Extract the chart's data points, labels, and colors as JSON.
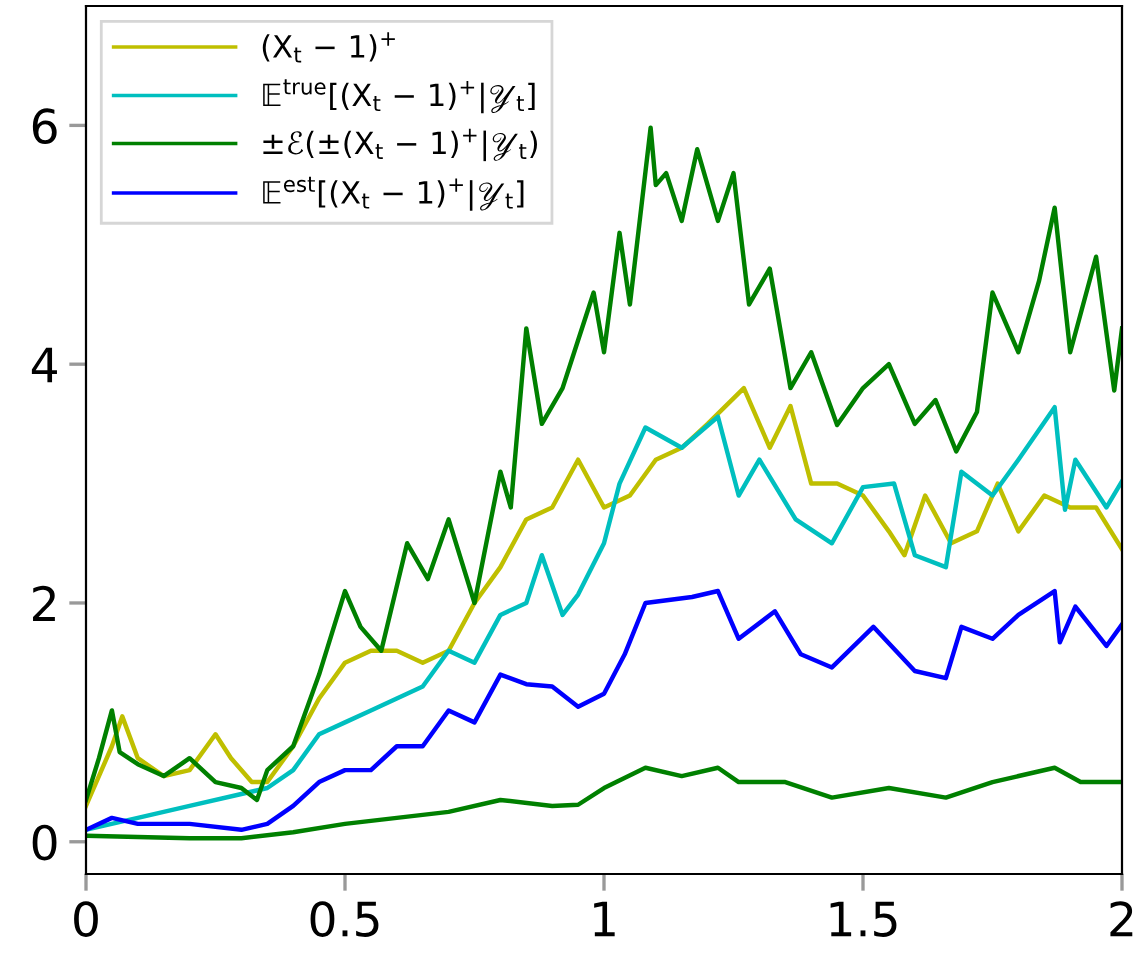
{
  "chart_data": {
    "type": "line",
    "xlim": [
      0,
      2
    ],
    "ylim": [
      -0.27,
      7
    ],
    "xticks": [
      0,
      0.5,
      1,
      1.5,
      2
    ],
    "yticks": [
      0,
      2,
      4,
      6
    ],
    "grid": false,
    "legend": "top left",
    "marker": "none",
    "line_style": "solid",
    "series": [
      {
        "name": "(X$_{t}$ − 1)$^{+}$",
        "color": "#bfbf00",
        "x": [
          0,
          0.05,
          0.07,
          0.1,
          0.15,
          0.2,
          0.25,
          0.28,
          0.32,
          0.35,
          0.4,
          0.45,
          0.5,
          0.55,
          0.6,
          0.65,
          0.7,
          0.75,
          0.8,
          0.85,
          0.9,
          0.95,
          1.0,
          1.05,
          1.1,
          1.15,
          1.2,
          1.27,
          1.32,
          1.36,
          1.4,
          1.45,
          1.5,
          1.55,
          1.58,
          1.62,
          1.67,
          1.72,
          1.76,
          1.8,
          1.85,
          1.9,
          1.95,
          2.0
        ],
        "values": [
          0.3,
          0.8,
          1.05,
          0.7,
          0.55,
          0.6,
          0.9,
          0.7,
          0.5,
          0.5,
          0.8,
          1.2,
          1.5,
          1.6,
          1.6,
          1.5,
          1.6,
          2.0,
          2.3,
          2.7,
          2.8,
          3.2,
          2.8,
          2.9,
          3.2,
          3.3,
          3.5,
          3.8,
          3.3,
          3.65,
          3.0,
          3.0,
          2.9,
          2.6,
          2.4,
          2.9,
          2.5,
          2.6,
          3.0,
          2.6,
          2.9,
          2.8,
          2.8,
          2.45
        ]
      },
      {
        "name": "𝔼$^{true}$[(X$_{t}$ − 1)$^{+}$|𝒴$_{t}$]",
        "color": "#00bfbf",
        "x": [
          0,
          0.1,
          0.2,
          0.3,
          0.35,
          0.4,
          0.45,
          0.5,
          0.55,
          0.6,
          0.65,
          0.7,
          0.75,
          0.8,
          0.85,
          0.88,
          0.92,
          0.95,
          1.0,
          1.03,
          1.08,
          1.15,
          1.22,
          1.26,
          1.3,
          1.37,
          1.44,
          1.5,
          1.56,
          1.6,
          1.66,
          1.69,
          1.75,
          1.8,
          1.87,
          1.89,
          1.91,
          1.97,
          2.0
        ],
        "values": [
          0.1,
          0.2,
          0.3,
          0.4,
          0.45,
          0.6,
          0.9,
          1.0,
          1.1,
          1.2,
          1.3,
          1.6,
          1.5,
          1.9,
          2.0,
          2.4,
          1.9,
          2.07,
          2.5,
          3.0,
          3.47,
          3.3,
          3.56,
          2.9,
          3.2,
          2.7,
          2.5,
          2.97,
          3.0,
          2.4,
          2.3,
          3.1,
          2.9,
          3.2,
          3.64,
          2.78,
          3.2,
          2.8,
          3.02
        ]
      },
      {
        "name": "±ℰ(±(X$_{t}$ − 1)$^{+}$|𝒴$_{t}$)",
        "color": "#008000",
        "x": [
          0,
          0.025,
          0.05,
          0.065,
          0.1,
          0.15,
          0.2,
          0.25,
          0.3,
          0.33,
          0.35,
          0.4,
          0.45,
          0.5,
          0.53,
          0.57,
          0.62,
          0.66,
          0.7,
          0.75,
          0.8,
          0.82,
          0.85,
          0.88,
          0.92,
          0.95,
          0.98,
          1.0,
          1.03,
          1.05,
          1.09,
          1.1,
          1.12,
          1.15,
          1.18,
          1.22,
          1.25,
          1.28,
          1.32,
          1.36,
          1.4,
          1.45,
          1.5,
          1.55,
          1.6,
          1.64,
          1.68,
          1.72,
          1.75,
          1.8,
          1.84,
          1.87,
          1.9,
          1.95,
          1.985,
          2.0
        ],
        "values": [
          0.35,
          0.7,
          1.1,
          0.75,
          0.65,
          0.55,
          0.7,
          0.5,
          0.45,
          0.35,
          0.6,
          0.8,
          1.4,
          2.1,
          1.8,
          1.6,
          2.5,
          2.2,
          2.7,
          2.0,
          3.1,
          2.8,
          4.3,
          3.5,
          3.8,
          4.2,
          4.6,
          4.1,
          5.1,
          4.5,
          5.98,
          5.5,
          5.6,
          5.2,
          5.8,
          5.2,
          5.6,
          4.5,
          4.8,
          3.8,
          4.1,
          3.49,
          3.8,
          4.0,
          3.5,
          3.7,
          3.27,
          3.6,
          4.6,
          4.1,
          4.7,
          5.31,
          4.1,
          4.9,
          3.78,
          4.3
        ]
      },
      {
        "color": "#008000",
        "x": [
          0,
          0.1,
          0.2,
          0.3,
          0.4,
          0.5,
          0.6,
          0.7,
          0.8,
          0.9,
          0.95,
          1.0,
          1.08,
          1.15,
          1.22,
          1.26,
          1.35,
          1.44,
          1.55,
          1.66,
          1.75,
          1.87,
          1.92,
          2.0
        ],
        "values": [
          0.05,
          0.04,
          0.03,
          0.03,
          0.08,
          0.15,
          0.2,
          0.25,
          0.35,
          0.3,
          0.31,
          0.45,
          0.62,
          0.55,
          0.62,
          0.5,
          0.5,
          0.37,
          0.45,
          0.37,
          0.5,
          0.62,
          0.5,
          0.5
        ]
      },
      {
        "name": "𝔼$^{est}$[(X$_{t}$ − 1)$^{+}$|𝒴$_{t}$]",
        "color": "#0000ff",
        "x": [
          0,
          0.05,
          0.1,
          0.2,
          0.3,
          0.35,
          0.4,
          0.45,
          0.5,
          0.55,
          0.6,
          0.65,
          0.7,
          0.75,
          0.8,
          0.85,
          0.9,
          0.95,
          1.0,
          1.04,
          1.08,
          1.17,
          1.22,
          1.26,
          1.33,
          1.38,
          1.44,
          1.52,
          1.6,
          1.66,
          1.69,
          1.75,
          1.8,
          1.87,
          1.88,
          1.91,
          1.97,
          2.0
        ],
        "values": [
          0.1,
          0.2,
          0.15,
          0.15,
          0.1,
          0.15,
          0.3,
          0.5,
          0.6,
          0.6,
          0.8,
          0.8,
          1.1,
          1.0,
          1.4,
          1.32,
          1.3,
          1.13,
          1.24,
          1.57,
          2.0,
          2.05,
          2.1,
          1.7,
          1.93,
          1.57,
          1.46,
          1.8,
          1.43,
          1.37,
          1.8,
          1.7,
          1.9,
          2.1,
          1.67,
          1.97,
          1.64,
          1.82
        ]
      }
    ]
  }
}
